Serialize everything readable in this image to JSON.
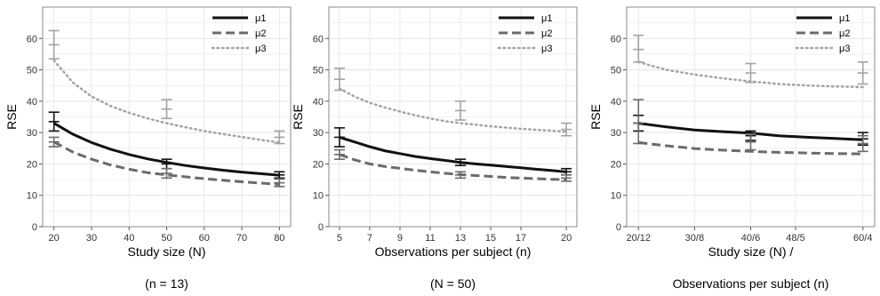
{
  "chart_data": [
    {
      "type": "line",
      "xlabel": "Study size (N)",
      "ylabel": "RSE",
      "caption": "(n = 13)",
      "xlim": [
        17,
        83
      ],
      "ylim": [
        0,
        70
      ],
      "xticks": [
        20,
        30,
        40,
        50,
        60,
        70,
        80
      ],
      "xtick_labels": [
        "20",
        "30",
        "40",
        "50",
        "60",
        "70",
        "80"
      ],
      "yticks": [
        0,
        10,
        20,
        30,
        40,
        50,
        60
      ],
      "grid": true,
      "legend_position": "top-right",
      "series": [
        {
          "name": "μ1",
          "style": "solid",
          "color": "#111111",
          "x": [
            20,
            25,
            30,
            35,
            40,
            45,
            50,
            55,
            60,
            65,
            70,
            75,
            80
          ],
          "y": [
            33,
            29.5,
            26.8,
            24.7,
            23,
            21.6,
            20.5,
            19.5,
            18.7,
            18,
            17.4,
            16.9,
            16.4
          ],
          "errorbars": [
            {
              "x": 20,
              "y": 33.5,
              "low": 30.5,
              "high": 36.5
            },
            {
              "x": 50,
              "y": 20,
              "low": 18.5,
              "high": 21.5
            },
            {
              "x": 80,
              "y": 16.5,
              "low": 15.5,
              "high": 17.5
            }
          ]
        },
        {
          "name": "μ2",
          "style": "dashed",
          "color": "#6b6b6b",
          "x": [
            20,
            25,
            30,
            35,
            40,
            45,
            50,
            55,
            60,
            65,
            70,
            75,
            80
          ],
          "y": [
            27,
            23.8,
            21.5,
            19.7,
            18.3,
            17.2,
            16.5,
            15.9,
            15.3,
            14.8,
            14.3,
            13.9,
            13.5
          ],
          "errorbars": [
            {
              "x": 20,
              "y": 27,
              "low": 25.5,
              "high": 28.5
            },
            {
              "x": 50,
              "y": 17,
              "low": 15.5,
              "high": 18.5
            },
            {
              "x": 80,
              "y": 14,
              "low": 12.8,
              "high": 15.2
            }
          ]
        },
        {
          "name": "μ3",
          "style": "dotted",
          "color": "#a3a3a3",
          "x": [
            20,
            25,
            30,
            35,
            40,
            45,
            50,
            55,
            60,
            65,
            70,
            75,
            80
          ],
          "y": [
            53,
            46,
            41.5,
            38.5,
            36.3,
            34.5,
            33,
            31.7,
            30.5,
            29.5,
            28.6,
            27.7,
            26.8
          ],
          "errorbars": [
            {
              "x": 20,
              "y": 58,
              "low": 53.5,
              "high": 62.5
            },
            {
              "x": 50,
              "y": 37.5,
              "low": 34.5,
              "high": 40.5
            },
            {
              "x": 80,
              "y": 28.5,
              "low": 26.5,
              "high": 30.5
            }
          ]
        }
      ]
    },
    {
      "type": "line",
      "xlabel": "Observations per subject (n)",
      "ylabel": "RSE",
      "caption": "(N = 50)",
      "xlim": [
        4.3,
        20.7
      ],
      "ylim": [
        0,
        70
      ],
      "xticks": [
        5,
        7,
        9,
        11,
        13,
        15,
        17,
        20
      ],
      "xtick_labels": [
        "5",
        "7",
        "9",
        "11",
        "13",
        "15",
        "17",
        "20"
      ],
      "yticks": [
        0,
        10,
        20,
        30,
        40,
        50,
        60
      ],
      "grid": true,
      "legend_position": "top-right",
      "series": [
        {
          "name": "μ1",
          "style": "solid",
          "color": "#111111",
          "x": [
            5,
            6,
            7,
            8,
            9,
            10,
            11,
            12,
            13,
            14,
            15,
            16,
            17,
            18,
            19,
            20
          ],
          "y": [
            28.5,
            27,
            25.5,
            24.2,
            23.3,
            22.4,
            21.7,
            21.1,
            20.5,
            20,
            19.6,
            19.2,
            18.8,
            18.3,
            17.9,
            17.5
          ],
          "errorbars": [
            {
              "x": 5,
              "y": 28.5,
              "low": 25.5,
              "high": 31.5
            },
            {
              "x": 13,
              "y": 20.5,
              "low": 19.5,
              "high": 21.5
            },
            {
              "x": 20,
              "y": 17.5,
              "low": 16.5,
              "high": 18.5
            }
          ]
        },
        {
          "name": "μ2",
          "style": "dashed",
          "color": "#6b6b6b",
          "x": [
            5,
            6,
            7,
            8,
            9,
            10,
            11,
            12,
            13,
            14,
            15,
            16,
            17,
            18,
            19,
            20
          ],
          "y": [
            23,
            21.3,
            20,
            19.2,
            18.6,
            18,
            17.5,
            17,
            16.6,
            16.3,
            16,
            15.7,
            15.5,
            15.3,
            15.1,
            15
          ],
          "errorbars": [
            {
              "x": 5,
              "y": 23,
              "low": 21.5,
              "high": 24.5
            },
            {
              "x": 13,
              "y": 16.5,
              "low": 15.5,
              "high": 17.5
            },
            {
              "x": 20,
              "y": 15.5,
              "low": 14.5,
              "high": 16.5
            }
          ]
        },
        {
          "name": "μ3",
          "style": "dotted",
          "color": "#a3a3a3",
          "x": [
            5,
            6,
            7,
            8,
            9,
            10,
            11,
            12,
            13,
            14,
            15,
            16,
            17,
            18,
            19,
            20
          ],
          "y": [
            44,
            41.5,
            39.5,
            38,
            36.7,
            35.5,
            34.5,
            33.6,
            33,
            32.5,
            32,
            31.6,
            31.2,
            30.9,
            30.6,
            30.3
          ],
          "errorbars": [
            {
              "x": 5,
              "y": 47,
              "low": 43.5,
              "high": 50.5
            },
            {
              "x": 13,
              "y": 37,
              "low": 34,
              "high": 40
            },
            {
              "x": 20,
              "y": 31,
              "low": 29,
              "high": 33
            }
          ]
        }
      ]
    },
    {
      "type": "line",
      "xlabel": "Study size (N) /",
      "xlabel2": "Observations per subject (n)",
      "ylabel": "RSE",
      "xlim": [
        17.9,
        62.1
      ],
      "ylim": [
        0,
        70
      ],
      "xticks": [
        20,
        30,
        40,
        48,
        60
      ],
      "xtick_labels": [
        "20/12",
        "30/8",
        "40/6",
        "48/5",
        "60/4"
      ],
      "yticks": [
        0,
        10,
        20,
        30,
        40,
        50,
        60
      ],
      "grid": true,
      "legend_position": "top-right",
      "series": [
        {
          "name": "μ1",
          "style": "solid",
          "color": "#111111",
          "x": [
            20,
            25,
            30,
            35,
            40,
            45,
            50,
            55,
            60
          ],
          "y": [
            33,
            31.8,
            30.8,
            30.3,
            29.8,
            29,
            28.5,
            28.1,
            27.7
          ],
          "errorbars": [
            {
              "x": 20,
              "y": 33,
              "low": 30.5,
              "high": 35.5
            },
            {
              "x": 40,
              "y": 29,
              "low": 27.5,
              "high": 30.5
            },
            {
              "x": 60,
              "y": 28,
              "low": 26,
              "high": 30
            }
          ]
        },
        {
          "name": "μ2",
          "style": "dashed",
          "color": "#6b6b6b",
          "x": [
            20,
            25,
            30,
            35,
            40,
            45,
            50,
            55,
            60
          ],
          "y": [
            26.8,
            25.8,
            24.9,
            24.4,
            24,
            23.7,
            23.5,
            23.3,
            23.2
          ],
          "errorbars": [
            {
              "x": 20,
              "y": 33,
              "low": 26.5,
              "high": 40.5
            },
            {
              "x": 40,
              "y": 27,
              "low": 24.5,
              "high": 29.5
            },
            {
              "x": 60,
              "y": 26.5,
              "low": 24,
              "high": 29
            }
          ]
        },
        {
          "name": "μ3",
          "style": "dotted",
          "color": "#a3a3a3",
          "x": [
            20,
            25,
            30,
            35,
            40,
            45,
            50,
            55,
            60
          ],
          "y": [
            52.5,
            50,
            48.5,
            47.3,
            46.3,
            45.5,
            45,
            44.7,
            44.5
          ],
          "errorbars": [
            {
              "x": 20,
              "y": 56.5,
              "low": 52.5,
              "high": 61
            },
            {
              "x": 40,
              "y": 49,
              "low": 46,
              "high": 52
            },
            {
              "x": 60,
              "y": 49,
              "low": 45.5,
              "high": 52.5
            }
          ]
        }
      ]
    }
  ]
}
